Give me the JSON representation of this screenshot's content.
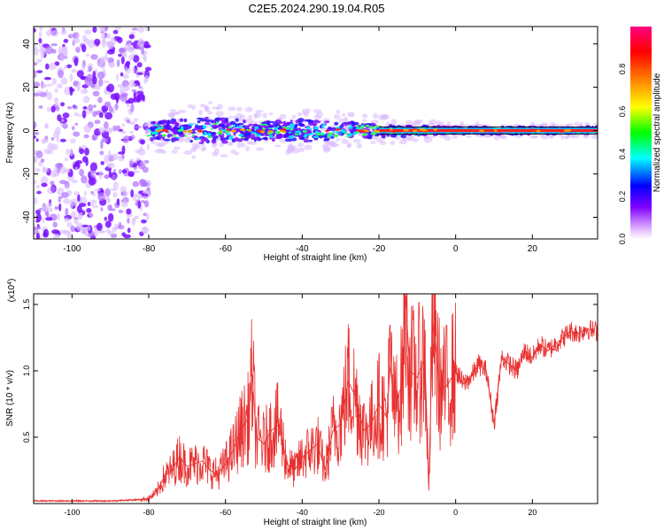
{
  "title": "C2E5.2024.290.19.04.R05",
  "chart_data": [
    {
      "type": "heatmap",
      "xlabel": "Height of straight line (km)",
      "ylabel": "Frequency (Hz)",
      "xlim": [
        -110,
        37
      ],
      "ylim": [
        -50,
        48
      ],
      "xticks": [
        -100,
        -80,
        -60,
        -40,
        -20,
        0,
        20
      ],
      "yticks": [
        -40,
        -20,
        0,
        20,
        40
      ],
      "colorbar": {
        "label": "Normalized spectral amplitude",
        "range": [
          0.0,
          1.0
        ],
        "ticks": [
          0.0,
          0.2,
          0.4,
          0.6,
          0.8
        ]
      },
      "noise_region_x": [
        -110,
        -80
      ],
      "signal_band_center_hz": 0,
      "signal_band_halfwidth_hz": [
        {
          "x": -80,
          "halfwidth": 4
        },
        {
          "x": -65,
          "halfwidth": 6
        },
        {
          "x": -50,
          "halfwidth": 4
        },
        {
          "x": -40,
          "halfwidth": 5
        },
        {
          "x": -30,
          "halfwidth": 4
        },
        {
          "x": -20,
          "halfwidth": 3
        },
        {
          "x": 0,
          "halfwidth": 1.5
        },
        {
          "x": 36,
          "halfwidth": 1.5
        }
      ]
    },
    {
      "type": "line",
      "xlabel": "Height of straight line (km)",
      "ylabel": "SNR (10 * v/v)",
      "y_multiplier": "(x10^4)",
      "xlim": [
        -110,
        37
      ],
      "ylim": [
        0,
        1.58
      ],
      "xticks": [
        -100,
        -80,
        -60,
        -40,
        -20,
        0,
        20
      ],
      "yticks": [
        0.5,
        1.0,
        1.5
      ],
      "series": [
        {
          "name": "SNR",
          "color": "#e83030",
          "x": [
            -110,
            -100,
            -90,
            -82,
            -80,
            -78,
            -76,
            -74,
            -72,
            -70,
            -68,
            -66,
            -64,
            -62,
            -60,
            -58,
            -56,
            -54,
            -53,
            -52,
            -50,
            -48,
            -46,
            -44,
            -42,
            -40,
            -38,
            -36,
            -34,
            -32,
            -30,
            -28,
            -26,
            -24,
            -22,
            -20,
            -18,
            -17,
            -16,
            -14,
            -13,
            -12,
            -10,
            -8,
            -7,
            -6,
            -4,
            -2,
            0,
            2,
            4,
            6,
            8,
            10,
            12,
            14,
            16,
            18,
            20,
            22,
            24,
            26,
            28,
            30,
            32,
            34,
            36
          ],
          "y": [
            0.02,
            0.02,
            0.02,
            0.03,
            0.04,
            0.08,
            0.2,
            0.25,
            0.35,
            0.28,
            0.3,
            0.32,
            0.25,
            0.22,
            0.3,
            0.4,
            0.55,
            0.65,
            0.97,
            0.5,
            0.45,
            0.55,
            0.6,
            0.3,
            0.25,
            0.35,
            0.4,
            0.45,
            0.25,
            0.55,
            0.6,
            0.92,
            0.8,
            0.55,
            0.6,
            0.75,
            0.65,
            1.05,
            0.7,
            0.9,
            1.56,
            1.0,
            0.95,
            1.1,
            0.1,
            1.38,
            0.85,
            0.9,
            1.0,
            0.9,
            0.95,
            1.05,
            1.0,
            0.6,
            1.1,
            1.05,
            1.0,
            1.15,
            1.1,
            1.2,
            1.15,
            1.2,
            1.25,
            1.3,
            1.28,
            1.32,
            1.3
          ]
        }
      ]
    }
  ]
}
